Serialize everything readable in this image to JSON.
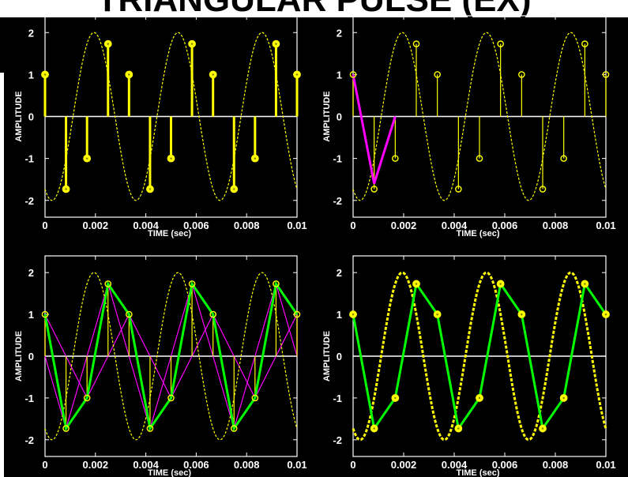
{
  "page_title": "TRIANGULAR PULSE (EX)",
  "colors": {
    "background": "#000000",
    "signal": "#ffff00",
    "interp": "#00ff00",
    "pulse": "#ff00ff",
    "zero_line": "#ffffff",
    "text": "#ffffff"
  },
  "chart_data": [
    {
      "type": "line",
      "panel": "top-left",
      "xlabel": "TIME (sec)",
      "ylabel": "AMPLITUDE",
      "xlim": [
        0,
        0.01
      ],
      "ylim": [
        -2.4,
        2.4
      ],
      "xticks": [
        0,
        0.002,
        0.004,
        0.006,
        0.008,
        0.01
      ],
      "xtick_labels": [
        "0",
        "0.002",
        "0.004",
        "0.006",
        "0.008",
        "0.01"
      ],
      "yticks": [
        -2,
        -1,
        0,
        1,
        2
      ],
      "ytick_labels": [
        "-2",
        "-1",
        "0",
        "1",
        "2"
      ],
      "series": [
        {
          "kind": "continuous_sinusoid",
          "amplitude": 2,
          "frequency_hz": 300,
          "phase_deg": 150
        },
        {
          "kind": "stem_samples",
          "x": [
            0,
            0.000833,
            0.001667,
            0.0025,
            0.003333,
            0.004167,
            0.005,
            0.005833,
            0.006667,
            0.0075,
            0.008333,
            0.009167,
            0.01
          ],
          "values": [
            1,
            -1.73,
            -1,
            1.73,
            1,
            -1.73,
            -1,
            1.73,
            1,
            -1.73,
            -1,
            1.73,
            1
          ]
        }
      ]
    },
    {
      "type": "line",
      "panel": "top-right",
      "xlabel": "TIME (sec)",
      "ylabel": "AMPLITUDE",
      "xlim": [
        0,
        0.01
      ],
      "ylim": [
        -2.4,
        2.4
      ],
      "xticks": [
        0,
        0.002,
        0.004,
        0.006,
        0.008,
        0.01
      ],
      "xtick_labels": [
        "0",
        "0.002",
        "0.004",
        "0.006",
        "0.008",
        "0.01"
      ],
      "yticks": [
        -2,
        -1,
        0,
        1,
        2
      ],
      "ytick_labels": [
        "-2",
        "-1",
        "0",
        "1",
        "2"
      ],
      "series": [
        {
          "kind": "continuous_sinusoid",
          "amplitude": 2,
          "frequency_hz": 300,
          "phase_deg": 150
        },
        {
          "kind": "stem_samples",
          "x": [
            0,
            0.000833,
            0.001667,
            0.0025,
            0.003333,
            0.004167,
            0.005,
            0.005833,
            0.006667,
            0.0075,
            0.008333,
            0.009167,
            0.01
          ],
          "values": [
            1,
            -1.73,
            -1,
            1.73,
            1,
            -1.73,
            -1,
            1.73,
            1,
            -1.73,
            -1,
            1.73,
            1
          ]
        },
        {
          "kind": "pulse",
          "x": [
            0,
            0.000833,
            0.001667
          ],
          "values": [
            1,
            -1.6,
            0
          ]
        }
      ]
    },
    {
      "type": "line",
      "panel": "bottom-left",
      "xlabel": "TIME (sec)",
      "ylabel": "AMPLITUDE",
      "xlim": [
        0,
        0.01
      ],
      "ylim": [
        -2.4,
        2.4
      ],
      "xticks": [
        0,
        0.002,
        0.004,
        0.006,
        0.008,
        0.01
      ],
      "xtick_labels": [
        "0",
        "0.002",
        "0.004",
        "0.006",
        "0.008",
        "0.01"
      ],
      "yticks": [
        -2,
        -1,
        0,
        1,
        2
      ],
      "ytick_labels": [
        "-2",
        "-1",
        "0",
        "1",
        "2"
      ],
      "series": [
        {
          "kind": "continuous_sinusoid",
          "amplitude": 2,
          "frequency_hz": 300,
          "phase_deg": 150
        },
        {
          "kind": "stem_samples",
          "x": [
            0,
            0.000833,
            0.001667,
            0.0025,
            0.003333,
            0.004167,
            0.005,
            0.005833,
            0.006667,
            0.0075,
            0.008333,
            0.009167,
            0.01
          ],
          "values": [
            1,
            -1.73,
            -1,
            1.73,
            1,
            -1.73,
            -1,
            1.73,
            1,
            -1.73,
            -1,
            1.73,
            1
          ]
        },
        {
          "kind": "pulses",
          "sample_spacing_sec": 0.000833
        },
        {
          "kind": "interpolated_sum",
          "x": [
            0,
            0.000833,
            0.001667,
            0.0025,
            0.003333,
            0.004167,
            0.005,
            0.005833,
            0.006667,
            0.0075,
            0.008333,
            0.009167,
            0.01
          ],
          "values": [
            1,
            -1.73,
            -1,
            1.73,
            1,
            -1.73,
            -1,
            1.73,
            1,
            -1.73,
            -1,
            1.73,
            1
          ]
        }
      ]
    },
    {
      "type": "line",
      "panel": "bottom-right",
      "xlabel": "TIME (sec)",
      "ylabel": "AMPLITUDE",
      "xlim": [
        0,
        0.01
      ],
      "ylim": [
        -2.4,
        2.4
      ],
      "xticks": [
        0,
        0.002,
        0.004,
        0.006,
        0.008,
        0.01
      ],
      "xtick_labels": [
        "0",
        "0.002",
        "0.004",
        "0.006",
        "0.008",
        "0.01"
      ],
      "yticks": [
        -2,
        -1,
        0,
        1,
        2
      ],
      "ytick_labels": [
        "-2",
        "-1",
        "0",
        "1",
        "2"
      ],
      "series": [
        {
          "kind": "continuous_sinusoid",
          "amplitude": 2,
          "frequency_hz": 300,
          "phase_deg": 150
        },
        {
          "kind": "sample_markers",
          "x": [
            0,
            0.000833,
            0.001667,
            0.0025,
            0.003333,
            0.004167,
            0.005,
            0.005833,
            0.006667,
            0.0075,
            0.008333,
            0.009167,
            0.01
          ],
          "values": [
            1,
            -1.73,
            -1,
            1.73,
            1,
            -1.73,
            -1,
            1.73,
            1,
            -1.73,
            -1,
            1.73,
            1
          ]
        },
        {
          "kind": "interpolated_sum",
          "x": [
            0,
            0.000833,
            0.001667,
            0.0025,
            0.003333,
            0.004167,
            0.005,
            0.005833,
            0.006667,
            0.0075,
            0.008333,
            0.009167,
            0.01
          ],
          "values": [
            1,
            -1.73,
            -1,
            1.73,
            1,
            -1.73,
            -1,
            1.73,
            1,
            -1.73,
            -1,
            1.73,
            1
          ]
        }
      ]
    }
  ]
}
